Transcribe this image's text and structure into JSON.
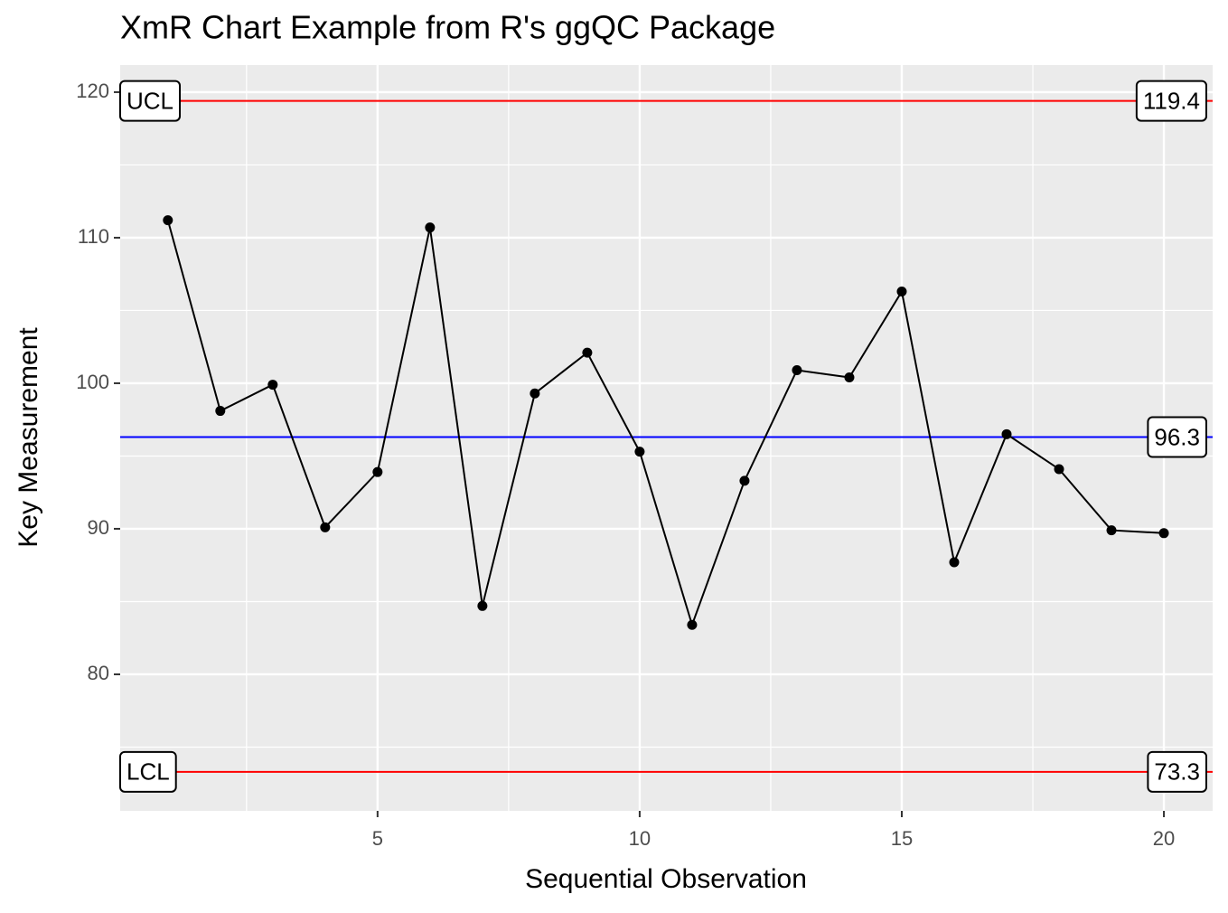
{
  "chart_data": {
    "type": "line",
    "title": "XmR Chart Example from R's ggQC Package",
    "x_label": "Sequential Observation",
    "y_label": "Key Measurement",
    "x": [
      1,
      2,
      3,
      4,
      5,
      6,
      7,
      8,
      9,
      10,
      11,
      12,
      13,
      14,
      15,
      16,
      17,
      18,
      19,
      20
    ],
    "series": [
      {
        "color": "#000000",
        "values": [
          111.2,
          98.1,
          99.9,
          90.1,
          93.9,
          110.7,
          84.7,
          99.3,
          102.1,
          95.3,
          83.4,
          93.3,
          100.9,
          100.4,
          106.3,
          87.7,
          96.5,
          94.1,
          89.9,
          89.7
        ]
      }
    ],
    "control_lines": [
      {
        "name": "UCL",
        "value": 119.4,
        "color": "#ff0000"
      },
      {
        "value": 96.3,
        "color": "#0000ff"
      },
      {
        "name": "LCL",
        "value": 73.3,
        "color": "#ff0000"
      }
    ],
    "xlim": [
      0.09,
      20.93
    ],
    "xticks": [
      5,
      10,
      15,
      20
    ],
    "ylim": [
      70.62,
      121.86
    ],
    "yticks": [
      80,
      90,
      100,
      110,
      120
    ],
    "grid": true
  }
}
